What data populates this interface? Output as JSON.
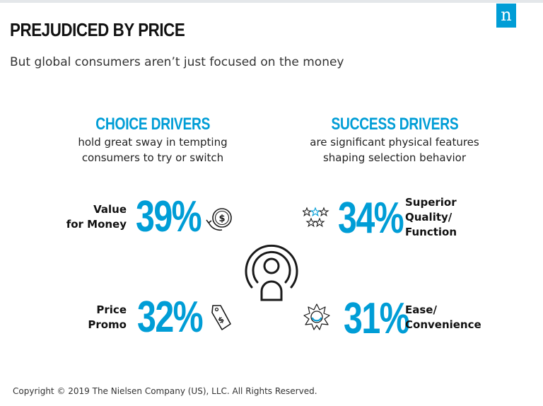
{
  "brand": {
    "logo_letter": "n",
    "accent_color": "#009dd6"
  },
  "header": {
    "title": "PREJUDICED BY PRICE",
    "subtitle": "But global consumers aren’t just focused on the money"
  },
  "choice": {
    "heading": "CHOICE DRIVERS",
    "desc_line1": "hold great sway in tempting",
    "desc_line2": "consumers to try or switch",
    "items": [
      {
        "label_line1": "Value",
        "label_line2": "for Money",
        "percent": "39%",
        "icon": "dollar-cycle-icon"
      },
      {
        "label_line1": "Price",
        "label_line2": "Promo",
        "percent": "32%",
        "icon": "price-tag-icon"
      }
    ]
  },
  "success": {
    "heading": "SUCCESS DRIVERS",
    "desc_line1": "are significant physical features",
    "desc_line2": "shaping selection behavior",
    "items": [
      {
        "label_line1": "Superior",
        "label_line2": "Quality/",
        "label_line3": "Function",
        "percent": "34%",
        "icon": "stars-icon"
      },
      {
        "label_line1": "Ease/",
        "label_line2": "Convenience",
        "percent": "31%",
        "icon": "sun-icon"
      }
    ]
  },
  "center_icon": "consumer-signal-icon",
  "footer": {
    "copyright": "Copyright © 2019 The Nielsen Company (US), LLC. All Rights Reserved."
  }
}
